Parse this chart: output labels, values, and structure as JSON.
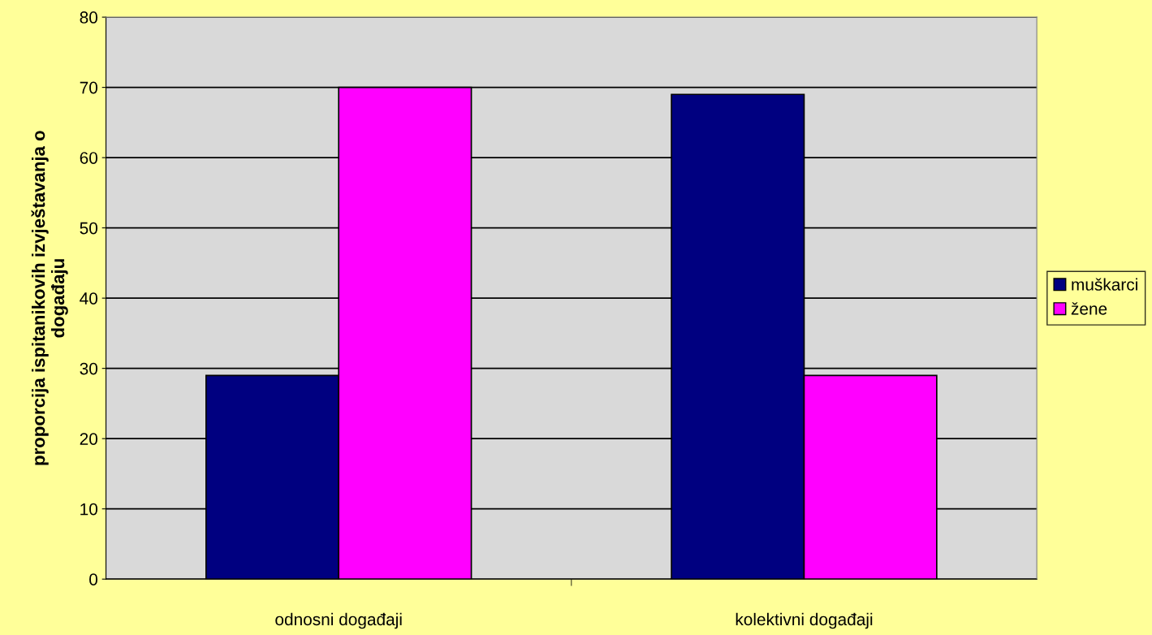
{
  "chart_data": {
    "type": "bar",
    "ylabel": "proporcija ispitanikovih izvještavanja o\ndogađaju",
    "categories": [
      "odnosni događaji",
      "kolektivni događaji"
    ],
    "series": [
      {
        "name": "muškarci",
        "color": "#000080",
        "values": [
          29,
          69
        ]
      },
      {
        "name": "žene",
        "color": "#ff00ff",
        "values": [
          70,
          29
        ]
      }
    ],
    "ylim": [
      0,
      80
    ],
    "yticks": [
      0,
      10,
      20,
      30,
      40,
      50,
      60,
      70,
      80
    ],
    "grid": "y",
    "legend": "right"
  }
}
